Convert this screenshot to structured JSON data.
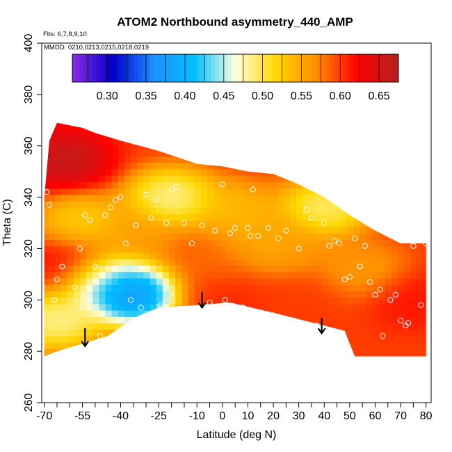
{
  "chart_data": {
    "type": "heatmap",
    "title": "ATOM2 Northbound asymmetry_440_AMP",
    "subtitle_flights": "Flts: 6,7,8,9,10",
    "subtitle_dates": "MMDD: 0210,0213,0215,0218,0219",
    "xlabel": "Latitude (deg N)",
    "ylabel": "Theta (C)",
    "xlim": [
      -71,
      82
    ],
    "ylim": [
      260,
      400
    ],
    "x_ticks": [
      -70,
      -55,
      -40,
      -25,
      -10,
      0,
      10,
      20,
      30,
      40,
      50,
      60,
      70,
      80
    ],
    "x_minor_ticks": [
      -65,
      -60,
      -50,
      -45,
      -35,
      -30,
      -20,
      -15,
      -5,
      5,
      15,
      25,
      35,
      45,
      55,
      65,
      75
    ],
    "y_ticks": [
      260,
      280,
      300,
      320,
      340,
      360,
      380,
      400
    ],
    "colorbar": {
      "ticks": [
        0.3,
        0.35,
        0.4,
        0.45,
        0.5,
        0.55,
        0.6,
        0.65
      ],
      "tick_labels": [
        "0.30",
        "0.35",
        "0.40",
        "0.45",
        "0.50",
        "0.55",
        "0.60",
        "0.65"
      ],
      "range": [
        0.255,
        0.675
      ],
      "colors": [
        "#8a2be2",
        "#0000cd",
        "#1e90ff",
        "#00bfff",
        "#ffffe0",
        "#ffd700",
        "#ff8c00",
        "#ff0000",
        "#b22222"
      ]
    },
    "field_upper_boundary": [
      [
        -70,
        340
      ],
      [
        -68,
        362
      ],
      [
        -65,
        369
      ],
      [
        -60,
        368
      ],
      [
        -55,
        367
      ],
      [
        -50,
        365
      ],
      [
        -40,
        362
      ],
      [
        -25,
        358
      ],
      [
        -10,
        353
      ],
      [
        0,
        352
      ],
      [
        10,
        350
      ],
      [
        20,
        349
      ],
      [
        30,
        345
      ],
      [
        40,
        340
      ],
      [
        50,
        333
      ],
      [
        60,
        327
      ],
      [
        70,
        322
      ],
      [
        80,
        322
      ]
    ],
    "field_lower_boundary": [
      [
        -70,
        278
      ],
      [
        -65,
        280
      ],
      [
        -55,
        283
      ],
      [
        -45,
        286
      ],
      [
        -35,
        293
      ],
      [
        -25,
        297
      ],
      [
        -10,
        298
      ],
      [
        3,
        299
      ],
      [
        20,
        295
      ],
      [
        40,
        290
      ],
      [
        48,
        288
      ],
      [
        52,
        278
      ],
      [
        80,
        278
      ]
    ],
    "anomaly_centers": [
      {
        "lat": -35,
        "theta": 302,
        "value": 0.3
      },
      {
        "lat": -45,
        "theta": 308,
        "value": 0.4
      },
      {
        "lat": -65,
        "theta": 292,
        "value": 0.45
      },
      {
        "lat": -20,
        "theta": 340,
        "value": 0.45
      },
      {
        "lat": 40,
        "theta": 336,
        "value": 0.46
      },
      {
        "lat": 5,
        "theta": 335,
        "value": 0.52
      },
      {
        "lat": 15,
        "theta": 324,
        "value": 0.54
      },
      {
        "lat": 25,
        "theta": 320,
        "value": 0.55
      },
      {
        "lat": -35,
        "theta": 325,
        "value": 0.55
      },
      {
        "lat": -55,
        "theta": 330,
        "value": 0.5
      },
      {
        "lat": 55,
        "theta": 312,
        "value": 0.55
      },
      {
        "lat": -62,
        "theta": 355,
        "value": 0.68
      },
      {
        "lat": 75,
        "theta": 300,
        "value": 0.62
      },
      {
        "lat": 0,
        "theta": 300,
        "value": 0.61
      },
      {
        "lat": -5,
        "theta": 315,
        "value": 0.58
      },
      {
        "lat": 30,
        "theta": 300,
        "value": 0.6
      },
      {
        "lat": -60,
        "theta": 315,
        "value": 0.63
      }
    ],
    "base_value": 0.6,
    "observations": [
      [
        -69,
        342
      ],
      [
        -68,
        337
      ],
      [
        -66,
        300
      ],
      [
        -65,
        308
      ],
      [
        -63,
        313
      ],
      [
        -60,
        280
      ],
      [
        -58,
        305
      ],
      [
        -56,
        320
      ],
      [
        -55,
        297
      ],
      [
        -54,
        333
      ],
      [
        -52,
        331
      ],
      [
        -50,
        313
      ],
      [
        -48,
        286
      ],
      [
        -46,
        333
      ],
      [
        -44,
        336
      ],
      [
        -42,
        339
      ],
      [
        -40,
        340
      ],
      [
        -38,
        322
      ],
      [
        -36,
        300
      ],
      [
        -34,
        329
      ],
      [
        -32,
        297
      ],
      [
        -30,
        341
      ],
      [
        -28,
        332
      ],
      [
        -26,
        339
      ],
      [
        -24,
        298
      ],
      [
        -22,
        330
      ],
      [
        -20,
        343
      ],
      [
        -18,
        344
      ],
      [
        -15,
        330
      ],
      [
        -12,
        322
      ],
      [
        -8,
        329
      ],
      [
        -5,
        299
      ],
      [
        -3,
        327
      ],
      [
        0,
        345
      ],
      [
        1,
        300
      ],
      [
        3,
        326
      ],
      [
        5,
        328
      ],
      [
        8,
        297
      ],
      [
        10,
        328
      ],
      [
        11,
        325
      ],
      [
        12,
        343
      ],
      [
        14,
        325
      ],
      [
        16,
        294
      ],
      [
        18,
        328
      ],
      [
        20,
        294
      ],
      [
        22,
        324
      ],
      [
        25,
        327
      ],
      [
        28,
        292
      ],
      [
        30,
        320
      ],
      [
        33,
        335
      ],
      [
        35,
        332
      ],
      [
        37,
        290
      ],
      [
        40,
        330
      ],
      [
        42,
        321
      ],
      [
        44,
        323
      ],
      [
        46,
        322
      ],
      [
        48,
        308
      ],
      [
        50,
        309
      ],
      [
        52,
        324
      ],
      [
        54,
        313
      ],
      [
        56,
        321
      ],
      [
        58,
        307
      ],
      [
        60,
        302
      ],
      [
        62,
        304
      ],
      [
        63,
        286
      ],
      [
        66,
        300
      ],
      [
        68,
        302
      ],
      [
        70,
        292
      ],
      [
        72,
        290
      ],
      [
        73,
        291
      ],
      [
        75,
        321
      ],
      [
        78,
        298
      ],
      [
        80,
        322
      ]
    ],
    "arrows": [
      {
        "lat": -54,
        "theta_start": 289,
        "theta_end": 282
      },
      {
        "lat": -8,
        "theta_start": 303,
        "theta_end": 297
      },
      {
        "lat": 39,
        "theta_start": 293,
        "theta_end": 287
      }
    ]
  }
}
